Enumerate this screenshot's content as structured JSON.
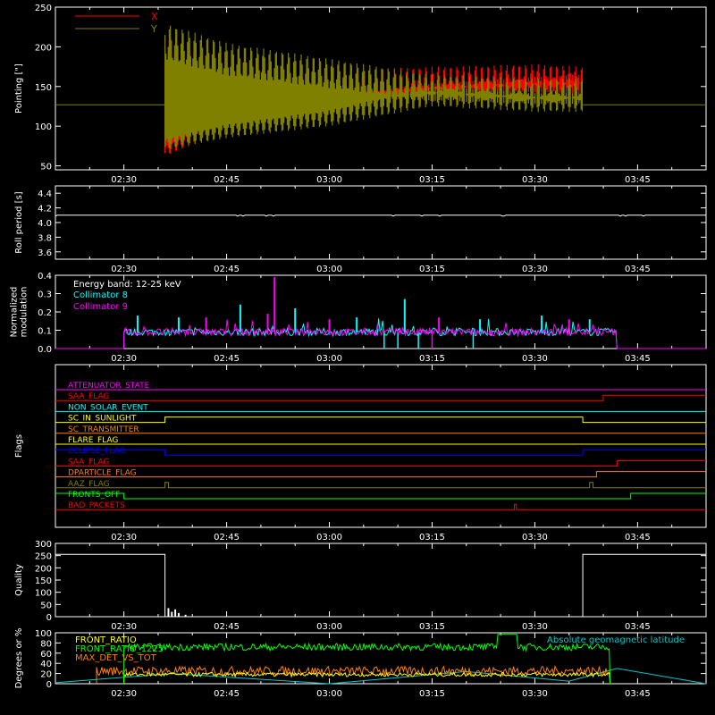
{
  "colors": {
    "background": "#000000",
    "frame": "#ffffff",
    "x_series": "#ff0000",
    "y_series": "#808000",
    "collimator8": "#00ffff",
    "collimator9": "#ff00ff",
    "front_ratio": "#ffff00",
    "front_ratio_1225": "#00ff00",
    "max_det": "#ff8000",
    "geomag": "#00c8c8"
  },
  "time_axis": {
    "start": "02:20",
    "end": "03:55",
    "tick_labels": [
      "02:30",
      "02:45",
      "03:00",
      "03:15",
      "03:30",
      "03:45"
    ]
  },
  "chart_data": [
    {
      "id": "pointing",
      "type": "line",
      "ylabel": "Pointing [\"]",
      "ylim": [
        45,
        250
      ],
      "yticks": [
        "50",
        "100",
        "150",
        "200",
        "250"
      ],
      "legend": [
        "X",
        "Y"
      ],
      "legend_placement": "top-left",
      "series": [
        {
          "name": "X",
          "color_key": "x_series",
          "data_start": "02:36",
          "data_end": "03:37",
          "center": [
            125,
            125,
            135,
            145,
            150,
            150
          ],
          "center_x_times": [
            "02:36",
            "02:45",
            "03:00",
            "03:15",
            "03:30",
            "03:37"
          ],
          "min": [
            62,
            95,
            115,
            128,
            135,
            138
          ],
          "max": [
            215,
            185,
            170,
            175,
            178,
            175
          ]
        },
        {
          "name": "Y",
          "color_key": "y_series",
          "data_start": "02:36",
          "data_end": "03:37",
          "min": [
            70,
            85,
            100,
            125,
            118,
            118
          ],
          "max": [
            230,
            205,
            185,
            165,
            160,
            160
          ],
          "baseline": 127
        }
      ]
    },
    {
      "id": "roll",
      "type": "line",
      "ylabel": "Roll period [s]",
      "ylim": [
        3.5,
        4.5
      ],
      "yticks": [
        "3.6",
        "3.8",
        "4.0",
        "4.2",
        "4.4"
      ],
      "series": [
        {
          "name": "",
          "value": 4.1
        }
      ]
    },
    {
      "id": "modulation",
      "type": "line",
      "ylabel": [
        "Normalized",
        "modulation"
      ],
      "ylim": [
        0,
        0.4
      ],
      "yticks": [
        "0.0",
        "0.1",
        "0.2",
        "0.3",
        "0.4"
      ],
      "annotation": "Energy band: 12-25 keV",
      "legend": [
        "Collimator 8",
        "Collimator 9"
      ],
      "legend_placement": "top-left",
      "data_start": "02:30",
      "data_end": "03:42",
      "typical": 0.09,
      "spikes_c8": [
        [
          "02:32",
          0.18
        ],
        [
          "02:38",
          0.17
        ],
        [
          "02:47",
          0.24
        ],
        [
          "02:55",
          0.22
        ],
        [
          "03:04",
          0.17
        ],
        [
          "03:11",
          0.27
        ],
        [
          "03:22",
          0.16
        ],
        [
          "03:31",
          0.18
        ],
        [
          "03:38",
          0.16
        ]
      ],
      "spikes_c9": [
        [
          "02:42",
          0.17
        ],
        [
          "02:51",
          0.19
        ],
        [
          "02:52",
          0.39
        ],
        [
          "03:00",
          0.16
        ],
        [
          "03:16",
          0.17
        ],
        [
          "03:35",
          0.16
        ]
      ],
      "dropouts_c8": [
        "03:08",
        "03:10",
        "03:13",
        "03:21"
      ],
      "dropouts_c9": [
        "03:15"
      ]
    },
    {
      "id": "flags",
      "type": "line",
      "ylabel": "Flags",
      "series": [
        {
          "name": "ATTENUATOR_STATE",
          "color": "#ff00ff",
          "steps": [
            [
              "02:20",
              0
            ]
          ]
        },
        {
          "name": "SAA_FLAG",
          "color": "#ff0000",
          "steps": [
            [
              "02:20",
              0
            ],
            [
              "03:40",
              1
            ]
          ]
        },
        {
          "name": "NON_SOLAR_EVENT",
          "color": "#00ffff",
          "steps": [
            [
              "02:20",
              0
            ]
          ]
        },
        {
          "name": "SC_IN_SUNLIGHT",
          "color": "#ffff00",
          "steps": [
            [
              "02:20",
              0
            ],
            [
              "02:36",
              1
            ],
            [
              "03:37",
              0
            ]
          ]
        },
        {
          "name": "SC_TRANSMITTER",
          "color": "#ff8000",
          "steps": [
            [
              "02:20",
              0
            ]
          ]
        },
        {
          "name": "FLARE_FLAG",
          "color": "#ffff00",
          "steps": [
            [
              "02:20",
              0
            ]
          ]
        },
        {
          "name": "ECLIPSE_FLAG",
          "color": "#0000ff",
          "steps": [
            [
              "02:20",
              1
            ],
            [
              "02:36",
              0
            ],
            [
              "03:37",
              1
            ]
          ]
        },
        {
          "name": "SAA_FLAG",
          "color": "#ff0000",
          "steps": [
            [
              "02:20",
              0
            ],
            [
              "03:42",
              1
            ]
          ]
        },
        {
          "name": "DPARTICLE_FLAG",
          "color": "#ff8000",
          "steps": [
            [
              "02:20",
              0
            ],
            [
              "03:39",
              1
            ]
          ]
        },
        {
          "name": "AAZ_FLAG",
          "color": "#808000",
          "steps": [
            [
              "02:20",
              0
            ],
            [
              "02:36",
              1
            ],
            [
              "02:36.5",
              0
            ],
            [
              "03:38",
              1
            ],
            [
              "03:38.5",
              0
            ]
          ]
        },
        {
          "name": "FRONTS_OFF",
          "color": "#00ff00",
          "steps": [
            [
              "02:20",
              1
            ],
            [
              "02:30",
              0
            ],
            [
              "03:44",
              1
            ]
          ]
        },
        {
          "name": "BAD_PACKETS",
          "color": "#ff0000",
          "steps": [
            [
              "02:20",
              0
            ],
            [
              "03:27",
              1
            ],
            [
              "03:27.3",
              0
            ]
          ]
        }
      ]
    },
    {
      "id": "quality",
      "type": "line",
      "ylabel": "Quality",
      "ylim": [
        0,
        300
      ],
      "yticks": [
        "0",
        "50",
        "100",
        "150",
        "200",
        "250",
        "300"
      ],
      "series": [
        {
          "name": "",
          "steps": [
            [
              "02:20",
              255
            ],
            [
              "02:36",
              0
            ],
            [
              "03:37",
              255
            ]
          ]
        }
      ],
      "noise": [
        [
          "02:36.5",
          35
        ],
        [
          "02:37",
          20
        ],
        [
          "02:37.5",
          30
        ],
        [
          "02:38",
          15
        ],
        [
          "02:39",
          8
        ]
      ]
    },
    {
      "id": "ratios",
      "type": "line",
      "ylabel": "Degrees or %",
      "ylim": [
        0,
        100
      ],
      "yticks": [
        "0",
        "20",
        "40",
        "60",
        "80",
        "100"
      ],
      "legend": [
        "FRONT_RATIO",
        "FRONT_RATIO_1225",
        "MAX_DET_VS_TOT"
      ],
      "annotation": "Absolute geomagnetic latitude",
      "series": [
        {
          "name": "FRONT_RATIO",
          "color_key": "front_ratio",
          "start": "02:30",
          "end": "03:41",
          "mean": 18
        },
        {
          "name": "FRONT_RATIO_1225",
          "color_key": "front_ratio_1225",
          "start": "02:30",
          "end": "03:41",
          "mean": 72,
          "bump": [
            "03:26",
            97
          ]
        },
        {
          "name": "MAX_DET_VS_TOT",
          "color_key": "max_det",
          "start": "02:26",
          "end": "03:41",
          "mean": 25
        },
        {
          "name": "Absolute geomagnetic latitude",
          "color_key": "geomag",
          "points": [
            [
              "02:20",
              2
            ],
            [
              "02:37",
              20
            ],
            [
              "03:00",
              0
            ],
            [
              "03:20",
              24
            ],
            [
              "03:35",
              5
            ],
            [
              "03:42",
              30
            ],
            [
              "03:55",
              0
            ]
          ]
        }
      ]
    }
  ]
}
